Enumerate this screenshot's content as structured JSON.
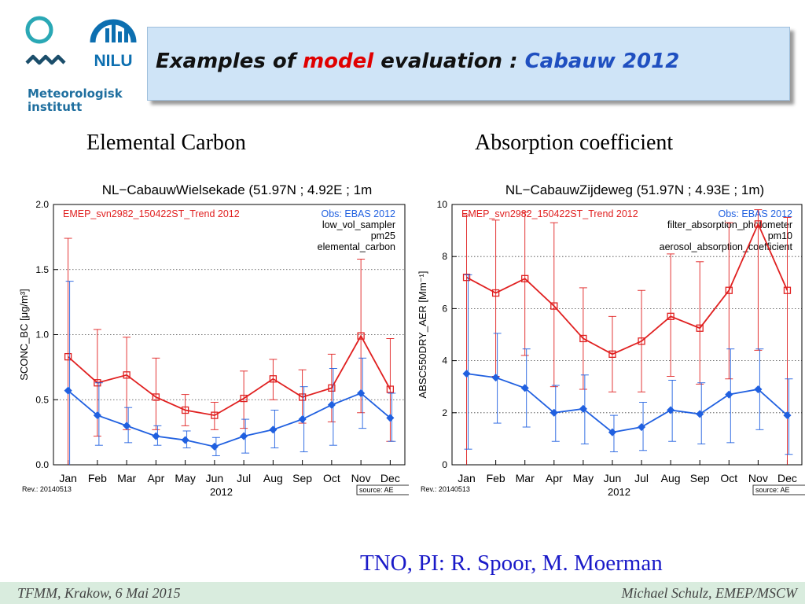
{
  "header": {
    "title_part1": "Examples of ",
    "title_part2": "model",
    "title_part3": " evaluation : ",
    "title_part4": "Cabauw 2012"
  },
  "logos": {
    "met_line1": "Meteorologisk",
    "met_line2": "institutt",
    "nilu": "NILU"
  },
  "credit": "TNO, PI: R. Spoor, M. Moerman",
  "footer": {
    "left": "TFMM, Krakow, 6 Mai 2015",
    "right": "Michael Schulz, EMEP/MSCW"
  },
  "colors": {
    "model": "#e02020",
    "obs": "#2060e0",
    "title_box": "#cfe4f7",
    "footer": "#d9ecde"
  },
  "chart_data": [
    {
      "type": "line",
      "heading": "Elemental Carbon",
      "title": "NL−CabauwWielsekade (51.97N ; 4.92E ; 1m",
      "ylabel": "SCONC_BC [μg/m³]",
      "xlabel": "2012",
      "ylim": [
        0,
        2.0
      ],
      "yticks": [
        0.0,
        0.5,
        1.0,
        1.5,
        2.0
      ],
      "ytick_labels": [
        "0.0",
        "0.5",
        "1.0",
        "1.5",
        "2.0"
      ],
      "dotted_grid": [
        0.5,
        1.0,
        1.5
      ],
      "categories": [
        "Jan",
        "Feb",
        "Mar",
        "Apr",
        "May",
        "Jun",
        "Jul",
        "Aug",
        "Sep",
        "Oct",
        "Nov",
        "Dec"
      ],
      "legend_left": "EMEP_svn2982_150422ST_Trend 2012",
      "legend_right": [
        "Obs: EBAS 2012",
        "low_vol_sampler",
        "pm25",
        "elemental_carbon"
      ],
      "rev": "Rev.: 20140513",
      "source": "source: AE",
      "series": [
        {
          "name": "EMEP_svn2982_150422ST_Trend 2012",
          "color": "#e02020",
          "marker": "square",
          "values": [
            0.83,
            0.63,
            0.69,
            0.52,
            0.42,
            0.38,
            0.51,
            0.66,
            0.52,
            0.59,
            0.99,
            0.58
          ],
          "err_low": [
            0.0,
            0.22,
            0.27,
            0.27,
            0.3,
            0.27,
            0.28,
            0.5,
            0.32,
            0.33,
            0.4,
            0.18
          ],
          "err_high": [
            1.74,
            1.04,
            0.98,
            0.82,
            0.54,
            0.48,
            0.72,
            0.81,
            0.73,
            0.85,
            1.58,
            0.97
          ]
        },
        {
          "name": "Obs: EBAS 2012",
          "color": "#2060e0",
          "marker": "diamond",
          "values": [
            0.57,
            0.38,
            0.3,
            0.22,
            0.19,
            0.14,
            0.22,
            0.27,
            0.35,
            0.46,
            0.55,
            0.36
          ],
          "err_low": [
            0.0,
            0.15,
            0.17,
            0.15,
            0.13,
            0.07,
            0.09,
            0.13,
            0.1,
            0.15,
            0.28,
            0.18
          ],
          "err_high": [
            1.41,
            0.63,
            0.44,
            0.3,
            0.26,
            0.21,
            0.35,
            0.42,
            0.6,
            0.74,
            0.82,
            0.55
          ]
        }
      ]
    },
    {
      "type": "line",
      "heading": "Absorption coefficient",
      "title": "NL−CabauwZijdeweg (51.97N ; 4.93E ; 1m)",
      "ylabel": "ABSC550DRY_AER [Mm⁻¹]",
      "xlabel": "2012",
      "ylim": [
        0,
        10
      ],
      "yticks": [
        0,
        2,
        4,
        6,
        8,
        10
      ],
      "ytick_labels": [
        "0",
        "2",
        "4",
        "6",
        "8",
        "10"
      ],
      "dotted_grid": [
        2,
        4,
        6,
        8
      ],
      "categories": [
        "Jan",
        "Feb",
        "Mar",
        "Apr",
        "May",
        "Jun",
        "Jul",
        "Aug",
        "Sep",
        "Oct",
        "Nov",
        "Dec"
      ],
      "legend_left": "EMEP_svn2982_150422ST_Trend 2012",
      "legend_right": [
        "Obs: EBAS 2012",
        "filter_absorption_photometer",
        "pm10",
        "aerosol_absorption_coefficient"
      ],
      "rev": "Rev.: 20140513",
      "source": "source: AE",
      "series": [
        {
          "name": "EMEP_svn2982_150422ST_Trend 2012",
          "color": "#e02020",
          "marker": "square",
          "values": [
            7.2,
            6.6,
            7.15,
            6.1,
            4.85,
            4.25,
            4.75,
            5.7,
            5.25,
            6.7,
            9.25,
            6.7
          ],
          "err_low": [
            0.0,
            3.4,
            4.2,
            3.0,
            2.9,
            2.8,
            2.8,
            3.4,
            3.1,
            3.3,
            4.4,
            0.0
          ],
          "err_high": [
            9.6,
            9.4,
            9.7,
            9.3,
            6.8,
            5.7,
            6.7,
            8.1,
            7.8,
            9.3,
            9.8,
            9.5
          ]
        },
        {
          "name": "Obs: EBAS 2012",
          "color": "#2060e0",
          "marker": "diamond",
          "values": [
            3.5,
            3.35,
            2.95,
            2.0,
            2.15,
            1.25,
            1.45,
            2.1,
            1.95,
            2.7,
            2.9,
            1.9
          ],
          "err_low": [
            0.6,
            1.6,
            1.45,
            0.9,
            0.8,
            0.5,
            0.55,
            0.9,
            0.8,
            0.85,
            1.35,
            0.4
          ],
          "err_high": [
            7.3,
            5.05,
            4.45,
            3.05,
            3.45,
            1.9,
            2.4,
            3.25,
            3.15,
            4.45,
            4.45,
            3.3
          ]
        }
      ]
    }
  ]
}
